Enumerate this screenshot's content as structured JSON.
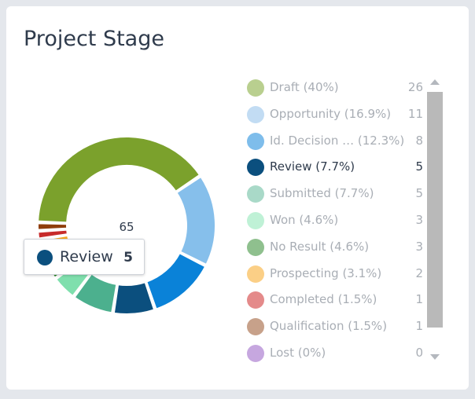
{
  "card": {
    "title": "Project Stage"
  },
  "chart_data": {
    "type": "pie",
    "variant": "donut",
    "center_label": "65",
    "legend_position": "right",
    "slices": [
      {
        "name": "Draft",
        "percent_label": "(40%)",
        "value": 26,
        "color": "#7ba12c"
      },
      {
        "name": "Opportunity",
        "percent_label": "(16.9%)",
        "value": 11,
        "color": "#86bfeb"
      },
      {
        "name": "Id. Decision …",
        "percent_label": "(12.3%)",
        "value": 8,
        "color": "#0a82d8"
      },
      {
        "name": "Review",
        "percent_label": "(7.7%)",
        "value": 5,
        "color": "#0b4f7e"
      },
      {
        "name": "Submitted",
        "percent_label": "(7.7%)",
        "value": 5,
        "color": "#4cb08e"
      },
      {
        "name": "Won",
        "percent_label": "(4.6%)",
        "value": 3,
        "color": "#7fdfad"
      },
      {
        "name": "No Result",
        "percent_label": "(4.6%)",
        "value": 3,
        "color": "#2d8a2a"
      },
      {
        "name": "Prospecting",
        "percent_label": "(3.1%)",
        "value": 2,
        "color": "#f6a623"
      },
      {
        "name": "Completed",
        "percent_label": "(1.5%)",
        "value": 1,
        "color": "#c72b2b"
      },
      {
        "name": "Qualification",
        "percent_label": "(1.5%)",
        "value": 1,
        "color": "#8f3e0c"
      },
      {
        "name": "Lost",
        "percent_label": "(0%)",
        "value": 0,
        "color": "#8b55c4"
      }
    ],
    "highlighted": "Review",
    "legend_swatch_colors": [
      "#b9cf8f",
      "#c2dcf3",
      "#7ebdeb",
      "#0b4f7e",
      "#a9d9c8",
      "#bff1d6",
      "#8fc08e",
      "#fbcf86",
      "#e48a8a",
      "#c7a18a",
      "#c6a7df"
    ]
  },
  "tooltip": {
    "name": "Review",
    "value": "5",
    "color": "#0b4f7e"
  },
  "scrollbar": {
    "up_icon": "chevron-up-icon",
    "down_icon": "chevron-down-icon"
  }
}
